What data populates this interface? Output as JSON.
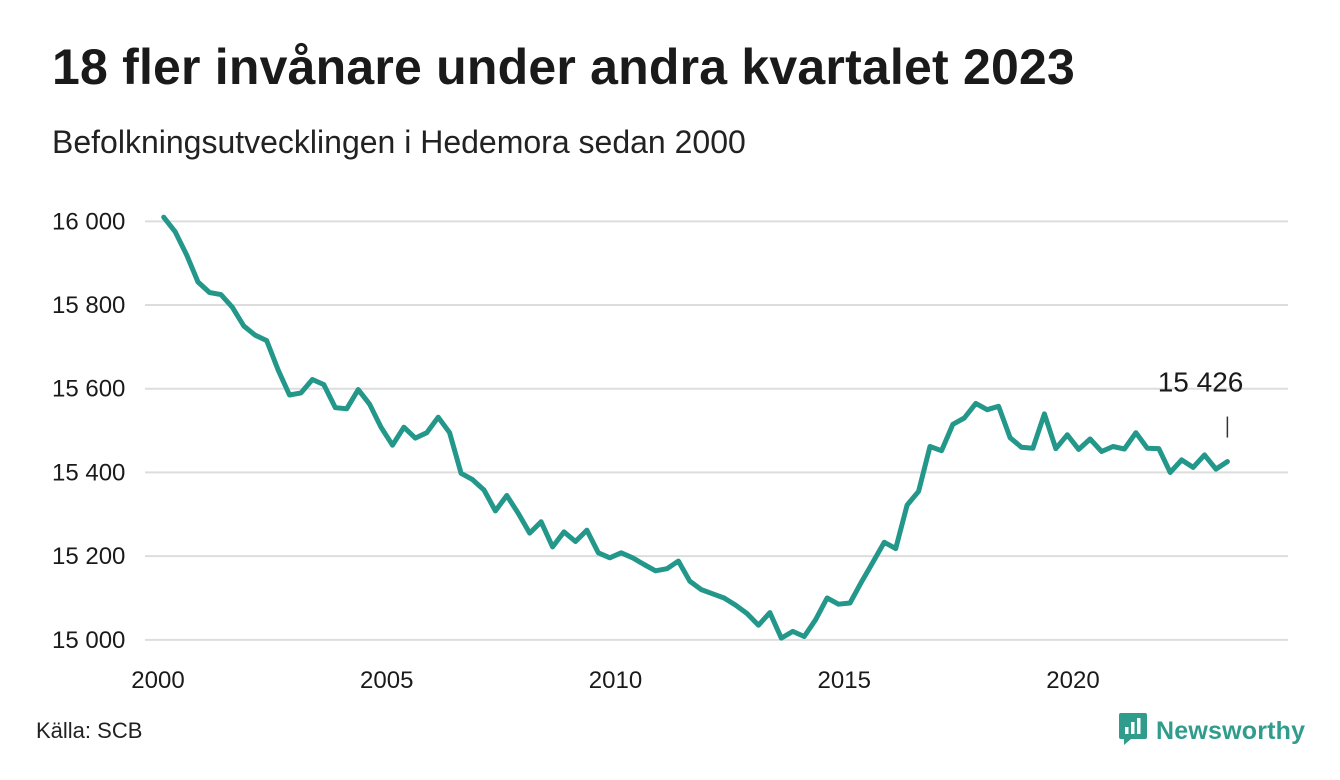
{
  "header": {
    "title": "18 fler invånare under andra kvartalet 2023",
    "subtitle": "Befolkningsutvecklingen i Hedemora sedan 2000"
  },
  "footer": {
    "source": "Källa: SCB",
    "brand": "Newsworthy",
    "brand_icon": "newsworthy-chart-icon"
  },
  "colors": {
    "line": "#23978a",
    "grid": "#dddddd",
    "brand": "#2f9c8c"
  },
  "chart_data": {
    "type": "line",
    "title": "18 fler invånare under andra kvartalet 2023",
    "subtitle": "Befolkningsutvecklingen i Hedemora sedan 2000",
    "xlabel": "",
    "ylabel": "",
    "x_ticks": [
      "2000",
      "2005",
      "2010",
      "2015",
      "2020"
    ],
    "y_ticks": [
      "15 000",
      "15 200",
      "15 400",
      "15 600",
      "15 800",
      "16 000"
    ],
    "xlim": [
      2000,
      2024.7
    ],
    "ylim": [
      14990,
      16020
    ],
    "grid": true,
    "annotation": {
      "text": "15 426",
      "year": 2023.375,
      "value": 15426
    },
    "series": [
      {
        "x_start": 2000.125,
        "x_step": 0.25,
        "values": [
          16010,
          15975,
          15920,
          15855,
          15830,
          15825,
          15795,
          15750,
          15728,
          15715,
          15645,
          15585,
          15590,
          15622,
          15610,
          15555,
          15552,
          15598,
          15563,
          15508,
          15465,
          15508,
          15482,
          15495,
          15532,
          15495,
          15398,
          15383,
          15358,
          15308,
          15345,
          15302,
          15255,
          15282,
          15222,
          15258,
          15235,
          15262,
          15208,
          15196,
          15208,
          15196,
          15180,
          15165,
          15170,
          15188,
          15140,
          15120,
          15110,
          15100,
          15083,
          15063,
          15035,
          15065,
          15004,
          15020,
          15008,
          15048,
          15100,
          15085,
          15088,
          15138,
          15185,
          15233,
          15218,
          15322,
          15355,
          15462,
          15452,
          15515,
          15530,
          15565,
          15550,
          15558,
          15483,
          15460,
          15458,
          15540,
          15457,
          15490,
          15455,
          15480,
          15450,
          15462,
          15456,
          15495,
          15458,
          15457,
          15400,
          15430,
          15412,
          15442,
          15408,
          15426
        ]
      }
    ]
  }
}
